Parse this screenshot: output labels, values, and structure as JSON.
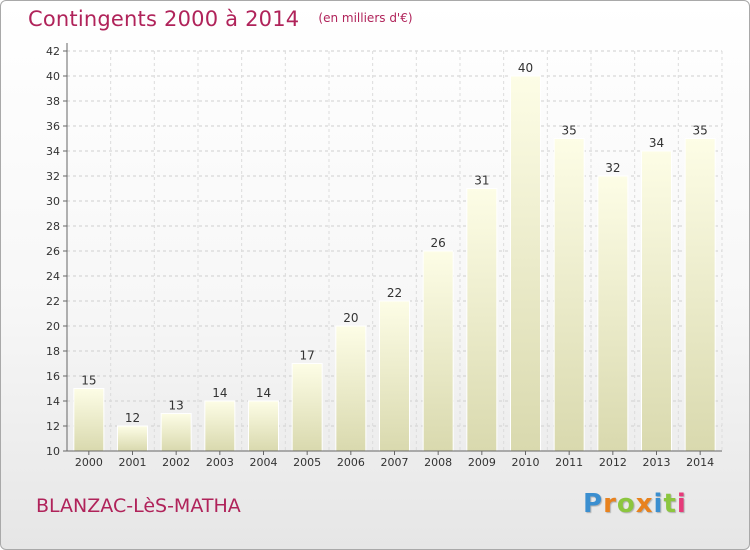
{
  "header": {
    "title": "Contingents 2000 à 2014",
    "unit": "(en milliers d'€)"
  },
  "footer": {
    "commune": "BLANZAC-LèS-MATHA",
    "brand": [
      "P",
      "r",
      "o",
      "x",
      "i",
      "t",
      "i"
    ],
    "brand_colors": [
      "#3b8fd0",
      "#e8821e",
      "#8cc63f",
      "#e8821e",
      "#3b8fd0",
      "#8cc63f",
      "#e63b7a"
    ]
  },
  "colors": {
    "title": "#b0235a",
    "bar_top": "#fdfde6",
    "bar_bottom": "#d9d9ae"
  },
  "chart_data": {
    "type": "bar",
    "title": "Contingents 2000 à 2014",
    "categories": [
      "2000",
      "2001",
      "2002",
      "2003",
      "2004",
      "2005",
      "2006",
      "2007",
      "2008",
      "2009",
      "2010",
      "2011",
      "2012",
      "2013",
      "2014"
    ],
    "values": [
      15,
      12,
      13,
      14,
      14,
      17,
      20,
      22,
      26,
      31,
      40,
      35,
      32,
      34,
      35
    ],
    "ylim": [
      10,
      42
    ],
    "yticks": [
      10,
      12,
      14,
      16,
      18,
      20,
      22,
      24,
      26,
      28,
      30,
      32,
      34,
      36,
      38,
      40,
      42
    ],
    "grid": true,
    "legend": "none"
  }
}
